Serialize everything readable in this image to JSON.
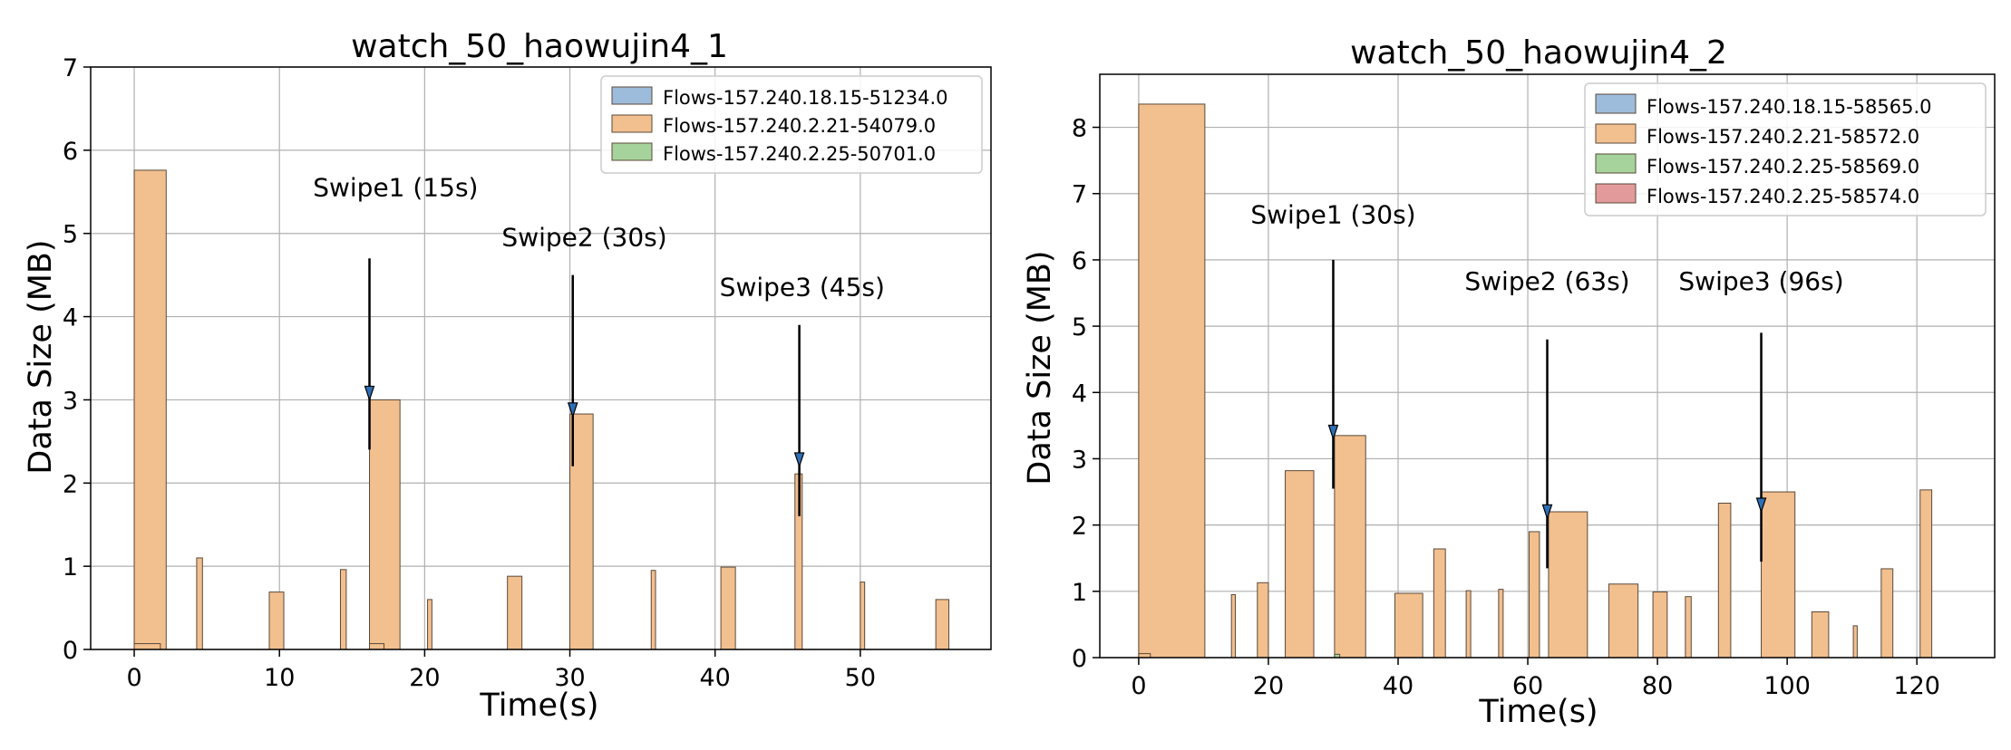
{
  "chart_data": [
    {
      "type": "bar",
      "title": "watch_50_haowujin4_1",
      "xlabel": "Time(s)",
      "ylabel": "Data Size (MB)",
      "xlim": [
        -3,
        59
      ],
      "ylim": [
        0,
        7
      ],
      "xticks": [
        0,
        10,
        20,
        30,
        40,
        50
      ],
      "yticks": [
        0,
        1,
        2,
        3,
        4,
        5,
        6,
        7
      ],
      "grid": true,
      "legend_position": "top-right",
      "colors": {
        "Flows-157.240.18.15-51234.0": "#9dbbdb",
        "Flows-157.240.2.21-54079.0": "#f2bf8e",
        "Flows-157.240.2.25-50701.0": "#a6d39c"
      },
      "series": [
        {
          "name": "Flows-157.240.18.15-51234.0",
          "bars": []
        },
        {
          "name": "Flows-157.240.2.21-54079.0",
          "bars": [
            {
              "x0": 0,
              "x1": 2.2,
              "y": 5.76
            },
            {
              "x0": 4.3,
              "x1": 4.7,
              "y": 1.1
            },
            {
              "x0": 9.3,
              "x1": 10.3,
              "y": 0.69
            },
            {
              "x0": 14.2,
              "x1": 14.6,
              "y": 0.96
            },
            {
              "x0": 16.2,
              "x1": 18.3,
              "y": 3.0
            },
            {
              "x0": 20.2,
              "x1": 20.5,
              "y": 0.6
            },
            {
              "x0": 25.7,
              "x1": 26.7,
              "y": 0.88
            },
            {
              "x0": 30.0,
              "x1": 31.6,
              "y": 2.83
            },
            {
              "x0": 35.6,
              "x1": 35.9,
              "y": 0.95
            },
            {
              "x0": 40.4,
              "x1": 41.4,
              "y": 0.99
            },
            {
              "x0": 45.5,
              "x1": 46.0,
              "y": 2.11
            },
            {
              "x0": 50.0,
              "x1": 50.3,
              "y": 0.81
            },
            {
              "x0": 55.2,
              "x1": 56.1,
              "y": 0.6
            },
            {
              "x0": 0,
              "x1": 1.8,
              "y": 0.07
            },
            {
              "x0": 16.2,
              "x1": 17.2,
              "y": 0.07
            }
          ]
        },
        {
          "name": "Flows-157.240.2.25-50701.0",
          "bars": []
        }
      ],
      "annotations": [
        {
          "text": "Swipe1 (15s)",
          "x": 16.2,
          "tip": 3.0,
          "tail": 4.7,
          "label_x": 18,
          "label_y": 5.45
        },
        {
          "text": "Swipe2 (30s)",
          "x": 30.2,
          "tip": 2.8,
          "tail": 4.5,
          "label_x": 31,
          "label_y": 4.85
        },
        {
          "text": "Swipe3 (45s)",
          "x": 45.8,
          "tip": 2.2,
          "tail": 3.9,
          "label_x": 46,
          "label_y": 4.25
        }
      ]
    },
    {
      "type": "bar",
      "title": "watch_50_haowujin4_2",
      "xlabel": "Time(s)",
      "ylabel": "Data Size (MB)",
      "xlim": [
        -6,
        132
      ],
      "ylim": [
        0,
        8.8
      ],
      "xticks": [
        0,
        20,
        40,
        60,
        80,
        100,
        120
      ],
      "yticks": [
        0,
        1,
        2,
        3,
        4,
        5,
        6,
        7,
        8
      ],
      "grid": true,
      "legend_position": "top-right",
      "colors": {
        "Flows-157.240.18.15-58565.0": "#9dbbdb",
        "Flows-157.240.2.21-58572.0": "#f2bf8e",
        "Flows-157.240.2.25-58569.0": "#a6d39c",
        "Flows-157.240.2.25-58574.0": "#e39a9b"
      },
      "series": [
        {
          "name": "Flows-157.240.18.15-58565.0",
          "bars": []
        },
        {
          "name": "Flows-157.240.2.21-58572.0",
          "bars": [
            {
              "x0": 0,
              "x1": 10.2,
              "y": 8.35
            },
            {
              "x0": 14.3,
              "x1": 14.9,
              "y": 0.95
            },
            {
              "x0": 18.3,
              "x1": 20.0,
              "y": 1.13
            },
            {
              "x0": 22.6,
              "x1": 27.0,
              "y": 2.82
            },
            {
              "x0": 30.2,
              "x1": 35.0,
              "y": 3.35
            },
            {
              "x0": 39.5,
              "x1": 43.8,
              "y": 0.97
            },
            {
              "x0": 45.5,
              "x1": 47.3,
              "y": 1.64
            },
            {
              "x0": 50.5,
              "x1": 51.2,
              "y": 1.01
            },
            {
              "x0": 55.5,
              "x1": 56.2,
              "y": 1.03
            },
            {
              "x0": 60.2,
              "x1": 61.8,
              "y": 1.9
            },
            {
              "x0": 63.2,
              "x1": 69.2,
              "y": 2.2
            },
            {
              "x0": 72.5,
              "x1": 77.0,
              "y": 1.11
            },
            {
              "x0": 79.3,
              "x1": 81.5,
              "y": 0.99
            },
            {
              "x0": 84.3,
              "x1": 85.2,
              "y": 0.92
            },
            {
              "x0": 89.4,
              "x1": 91.3,
              "y": 2.33
            },
            {
              "x0": 96.0,
              "x1": 101.2,
              "y": 2.5
            },
            {
              "x0": 103.8,
              "x1": 106.4,
              "y": 0.69
            },
            {
              "x0": 110.2,
              "x1": 110.8,
              "y": 0.48
            },
            {
              "x0": 114.5,
              "x1": 116.3,
              "y": 1.34
            },
            {
              "x0": 120.5,
              "x1": 122.3,
              "y": 2.53
            },
            {
              "x0": 0,
              "x1": 1.8,
              "y": 0.06
            }
          ]
        },
        {
          "name": "Flows-157.240.2.25-58569.0",
          "bars": [
            {
              "x0": 30.2,
              "x1": 31.0,
              "y": 0.05
            }
          ]
        },
        {
          "name": "Flows-157.240.2.25-58574.0",
          "bars": []
        }
      ],
      "annotations": [
        {
          "text": "Swipe1 (30s)",
          "x": 30,
          "tip": 3.3,
          "tail": 6.0,
          "label_x": 30,
          "label_y": 6.55
        },
        {
          "text": "Swipe2 (63s)",
          "x": 63,
          "tip": 2.1,
          "tail": 4.8,
          "label_x": 63,
          "label_y": 5.55
        },
        {
          "text": "Swipe3 (96s)",
          "x": 96,
          "tip": 2.2,
          "tail": 4.9,
          "label_x": 96,
          "label_y": 5.55
        }
      ]
    }
  ]
}
